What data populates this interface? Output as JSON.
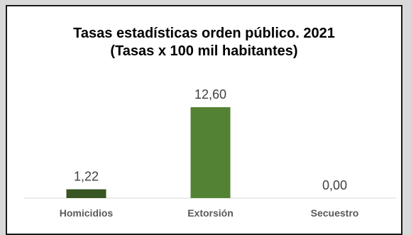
{
  "chart_data": {
    "type": "bar",
    "title": "Tasas estadísticas orden público. 2021",
    "subtitle": "(Tasas x 100 mil habitantes)",
    "categories": [
      "Homicidios",
      "Extorsión",
      "Secuestro"
    ],
    "values": [
      1.22,
      12.6,
      0.0
    ],
    "value_labels": [
      "1,22",
      "12,60",
      "0,00"
    ],
    "bar_colors": [
      "#375623",
      "#548235",
      "#548235"
    ],
    "xlabel": "",
    "ylabel": "",
    "ylim": [
      0,
      12.6
    ],
    "grid": false,
    "legend": "none",
    "axis_color": "#d9d9d9",
    "value_label_color": "#404040",
    "category_label_color": "#595959"
  }
}
